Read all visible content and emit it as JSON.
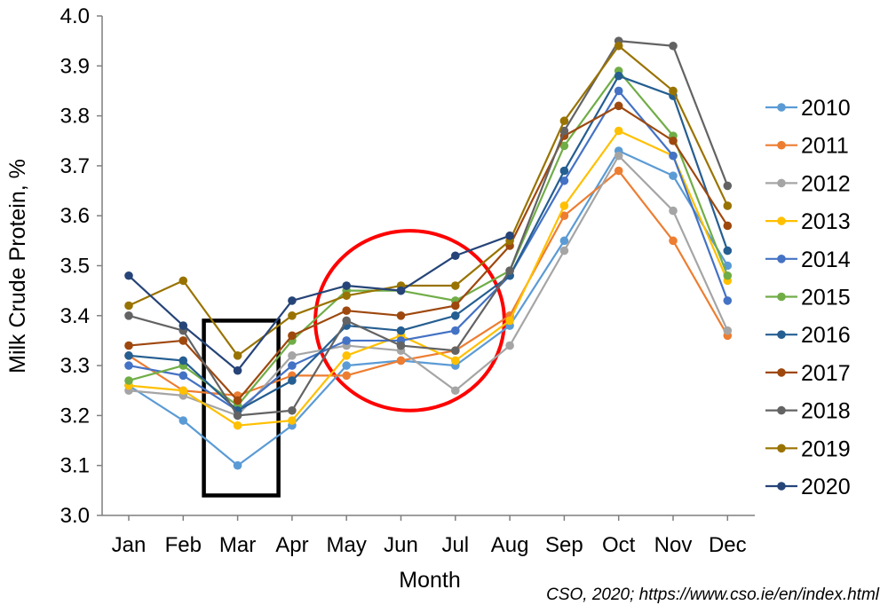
{
  "chart_data": {
    "type": "line",
    "xlabel": "Month",
    "ylabel": "Milk Crude Protein, %",
    "ylim": [
      3.0,
      4.0
    ],
    "yticks": [
      "3.0",
      "3.1",
      "3.2",
      "3.3",
      "3.4",
      "3.5",
      "3.6",
      "3.7",
      "3.8",
      "3.9",
      "4.0"
    ],
    "categories": [
      "Jan",
      "Feb",
      "Mar",
      "Apr",
      "May",
      "Jun",
      "Jul",
      "Aug",
      "Sep",
      "Oct",
      "Nov",
      "Dec"
    ],
    "grid": false,
    "legend_position": "right",
    "source_note": "CSO, 2020; https://www.cso.ie/en/index.html",
    "series": [
      {
        "name": "2010",
        "color": "#5B9BD5",
        "values": [
          3.26,
          3.19,
          3.1,
          3.18,
          3.3,
          3.31,
          3.3,
          3.38,
          3.55,
          3.73,
          3.68,
          3.5
        ]
      },
      {
        "name": "2011",
        "color": "#ED7D31",
        "values": [
          3.32,
          3.25,
          3.24,
          3.28,
          3.28,
          3.31,
          3.33,
          3.4,
          3.6,
          3.69,
          3.55,
          3.36
        ]
      },
      {
        "name": "2012",
        "color": "#A5A5A5",
        "values": [
          3.25,
          3.24,
          3.2,
          3.32,
          3.34,
          3.33,
          3.25,
          3.34,
          3.53,
          3.72,
          3.61,
          3.37
        ]
      },
      {
        "name": "2013",
        "color": "#FFC000",
        "values": [
          3.26,
          3.25,
          3.18,
          3.19,
          3.32,
          3.36,
          3.31,
          3.39,
          3.62,
          3.77,
          3.72,
          3.47
        ]
      },
      {
        "name": "2014",
        "color": "#4472C4",
        "values": [
          3.3,
          3.28,
          3.21,
          3.3,
          3.35,
          3.35,
          3.37,
          3.48,
          3.67,
          3.85,
          3.72,
          3.43
        ]
      },
      {
        "name": "2015",
        "color": "#70AD47",
        "values": [
          3.27,
          3.3,
          3.22,
          3.35,
          3.45,
          3.45,
          3.43,
          3.49,
          3.74,
          3.89,
          3.76,
          3.48
        ]
      },
      {
        "name": "2016",
        "color": "#255E91",
        "values": [
          3.32,
          3.31,
          3.21,
          3.27,
          3.38,
          3.37,
          3.4,
          3.48,
          3.69,
          3.88,
          3.84,
          3.53
        ]
      },
      {
        "name": "2017",
        "color": "#9E480E",
        "values": [
          3.34,
          3.35,
          3.23,
          3.36,
          3.41,
          3.4,
          3.42,
          3.54,
          3.76,
          3.82,
          3.75,
          3.58
        ]
      },
      {
        "name": "2018",
        "color": "#636363",
        "values": [
          3.4,
          3.37,
          3.2,
          3.21,
          3.39,
          3.34,
          3.33,
          3.49,
          3.77,
          3.95,
          3.94,
          3.66
        ]
      },
      {
        "name": "2019",
        "color": "#997300",
        "values": [
          3.42,
          3.47,
          3.32,
          3.4,
          3.44,
          3.46,
          3.46,
          3.55,
          3.79,
          3.94,
          3.85,
          3.62
        ]
      },
      {
        "name": "2020",
        "color": "#264478",
        "values": [
          3.48,
          3.38,
          3.29,
          3.43,
          3.46,
          3.45,
          3.52,
          3.56,
          null,
          null,
          null,
          null
        ]
      }
    ],
    "annotations": [
      {
        "type": "rectangle",
        "color": "#000000",
        "x_from": "Mar",
        "x_to": "Mar",
        "y_range": [
          3.04,
          3.39
        ]
      },
      {
        "type": "circle",
        "color": "#FF0000",
        "center_x": "Jun",
        "center_y": 3.39,
        "radius_y": 0.18
      }
    ]
  }
}
